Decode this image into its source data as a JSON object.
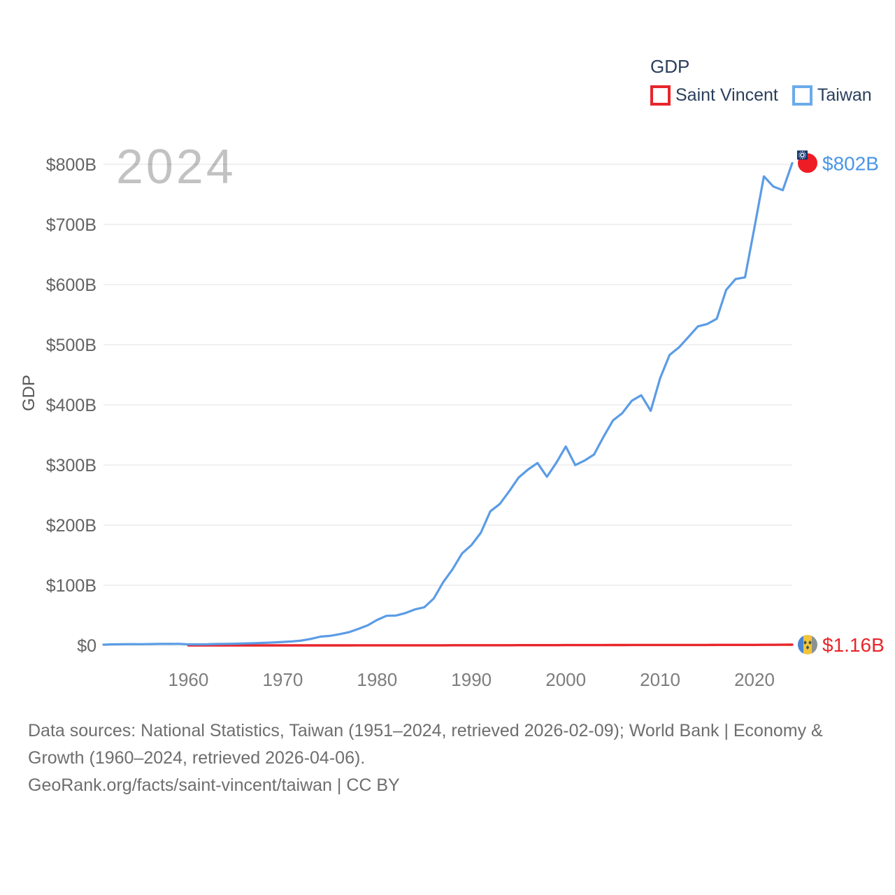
{
  "watermark_year": "2024",
  "legend": {
    "title": "GDP",
    "items": [
      {
        "label": "Saint Vincent",
        "color": "#e8262b"
      },
      {
        "label": "Taiwan",
        "color": "#5b9ce6"
      }
    ]
  },
  "colors": {
    "taiwan_line": "#5b9ce6",
    "saint_vincent_line": "#e8262b",
    "taiwan_end_label": "#4a96e8",
    "saint_vincent_end_label": "#e8262b",
    "gridline": "#ebebeb",
    "legend_text": "#2b3f5c",
    "watermark": "#c2c2c2"
  },
  "chart_data": {
    "type": "line",
    "title": "GDP",
    "legend_position": "top-right",
    "grid": "horizontal",
    "x_axis": {
      "range": [
        1951,
        2024
      ],
      "ticks": [
        1960,
        1970,
        1980,
        1990,
        2000,
        2010,
        2020
      ]
    },
    "y_axis": {
      "label": "GDP",
      "range_billions": [
        0,
        800
      ],
      "ticks": [
        {
          "value": 0,
          "label": "$0"
        },
        {
          "value": 100,
          "label": "$100B"
        },
        {
          "value": 200,
          "label": "$200B"
        },
        {
          "value": 300,
          "label": "$300B"
        },
        {
          "value": 400,
          "label": "$400B"
        },
        {
          "value": 500,
          "label": "$500B"
        },
        {
          "value": 600,
          "label": "$600B"
        },
        {
          "value": 700,
          "label": "$700B"
        },
        {
          "value": 800,
          "label": "$800B"
        }
      ]
    },
    "series": [
      {
        "name": "Saint Vincent",
        "color": "#e8262b",
        "line_width": 3.4,
        "flag": "saint-vincent",
        "end_label": "$1.16B",
        "end_label_color": "#e8262b",
        "start_year": 1960,
        "values_billions": [
          0.013,
          0.014,
          0.015,
          0.016,
          0.017,
          0.018,
          0.02,
          0.021,
          0.022,
          0.024,
          0.027,
          0.031,
          0.033,
          0.035,
          0.04,
          0.043,
          0.045,
          0.05,
          0.06,
          0.068,
          0.078,
          0.09,
          0.099,
          0.105,
          0.114,
          0.126,
          0.141,
          0.155,
          0.176,
          0.188,
          0.24,
          0.252,
          0.269,
          0.278,
          0.281,
          0.304,
          0.317,
          0.331,
          0.346,
          0.362,
          0.434,
          0.444,
          0.459,
          0.484,
          0.522,
          0.55,
          0.608,
          0.684,
          0.695,
          0.675,
          0.681,
          0.676,
          0.693,
          0.721,
          0.728,
          0.755,
          0.773,
          0.785,
          0.811,
          0.825,
          0.872,
          0.89,
          0.951,
          1.07,
          1.16
        ]
      },
      {
        "name": "Taiwan",
        "color": "#5b9ce6",
        "line_width": 3.2,
        "flag": "taiwan",
        "end_label": "$802B",
        "end_label_color": "#4a96e8",
        "start_year": 1951,
        "values_billions": [
          1.2,
          1.7,
          1.9,
          2.1,
          2.0,
          2.2,
          2.4,
          2.5,
          2.6,
          1.7,
          1.8,
          1.9,
          2.3,
          2.6,
          2.8,
          3.2,
          3.6,
          4.2,
          4.9,
          5.7,
          6.6,
          8.0,
          10.8,
          14.5,
          15.8,
          18.5,
          21.9,
          27.3,
          33.2,
          42.3,
          49.2,
          49.6,
          53.7,
          59.8,
          63.4,
          77.9,
          105,
          126.5,
          152.7,
          166.8,
          187.3,
          222.9,
          235.1,
          256.2,
          279.1,
          292.5,
          303.3,
          280.4,
          303.8,
          330.7,
          299.8,
          307.4,
          317.4,
          346.9,
          374.0,
          386.4,
          406.9,
          415.9,
          390.1,
          444.3,
          483.0,
          495.6,
          512.9,
          530.5,
          534.5,
          543.1,
          591.0,
          609.2,
          612.0,
          695.0,
          780.0,
          763.0,
          757.0,
          802.0
        ]
      }
    ]
  },
  "footer": {
    "lines": [
      "Data sources: National Statistics, Taiwan (1951–2024, retrieved 2026-02-09); World Bank | Economy &",
      "Growth (1960–2024, retrieved 2026-04-06).",
      "GeoRank.org/facts/saint-vincent/taiwan | CC BY"
    ]
  }
}
